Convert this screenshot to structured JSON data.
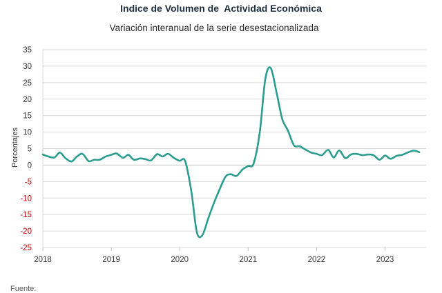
{
  "chart_data": {
    "type": "line",
    "title": "Indice de Volumen de  Actividad Económica",
    "subtitle": "Variación interanual de la serie desestacionalizada",
    "ylabel": "Porcentajes",
    "xlabel": "",
    "ylim": [
      -25,
      35
    ],
    "yticks": [
      -25,
      -20,
      -15,
      -10,
      -5,
      0,
      5,
      10,
      15,
      20,
      25,
      30,
      35
    ],
    "xlim": [
      2018,
      2023.6
    ],
    "xticks": [
      "2018",
      "2019",
      "2020",
      "2021",
      "2022",
      "2023"
    ],
    "grid": true,
    "negative_tick_color": "#c00000",
    "line_color": "#2a9d8f",
    "x": [
      2018.0,
      2018.08,
      2018.17,
      2018.25,
      2018.33,
      2018.42,
      2018.5,
      2018.58,
      2018.67,
      2018.75,
      2018.83,
      2018.92,
      2019.0,
      2019.08,
      2019.17,
      2019.25,
      2019.33,
      2019.42,
      2019.5,
      2019.58,
      2019.67,
      2019.75,
      2019.83,
      2019.92,
      2020.0,
      2020.08,
      2020.17,
      2020.25,
      2020.33,
      2020.42,
      2020.5,
      2020.58,
      2020.67,
      2020.75,
      2020.83,
      2020.92,
      2021.0,
      2021.08,
      2021.17,
      2021.25,
      2021.33,
      2021.42,
      2021.5,
      2021.58,
      2021.67,
      2021.75,
      2021.83,
      2021.92,
      2022.0,
      2022.08,
      2022.17,
      2022.25,
      2022.33,
      2022.42,
      2022.5,
      2022.58,
      2022.67,
      2022.75,
      2022.83,
      2022.92,
      2023.0,
      2023.08,
      2023.17,
      2023.25,
      2023.33,
      2023.42,
      2023.5
    ],
    "values": [
      3.2,
      2.6,
      2.3,
      3.8,
      2.1,
      1.1,
      2.6,
      3.4,
      1.2,
      1.6,
      1.6,
      2.6,
      3.1,
      3.5,
      2.2,
      3.1,
      1.6,
      2.0,
      1.8,
      1.4,
      3.3,
      2.6,
      3.4,
      2.1,
      1.3,
      1.2,
      -8.0,
      -20.3,
      -21.3,
      -16.0,
      -11.5,
      -7.5,
      -3.5,
      -2.8,
      -3.3,
      -1.3,
      -0.3,
      0.5,
      10.0,
      26.0,
      29.4,
      21.5,
      13.8,
      10.5,
      6.0,
      5.7,
      4.8,
      3.8,
      3.4,
      3.0,
      4.6,
      2.3,
      4.4,
      2.1,
      3.2,
      3.4,
      3.0,
      3.2,
      3.0,
      1.6,
      2.9,
      1.9,
      2.8,
      3.1,
      3.8,
      4.4,
      3.9
    ]
  },
  "footer": {
    "source_label": "Fuente:"
  }
}
